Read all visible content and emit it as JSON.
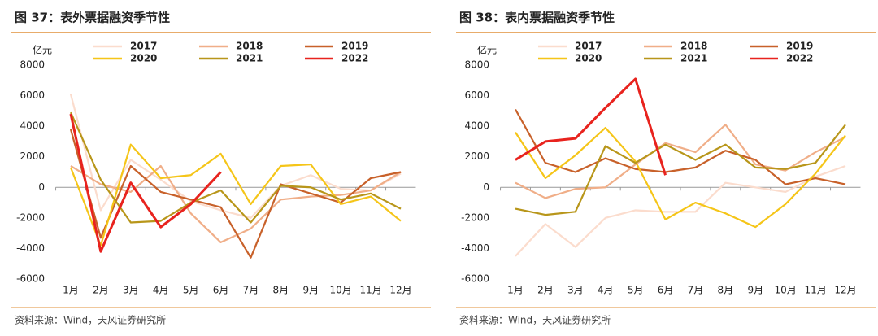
{
  "chart_data": [
    {
      "type": "line",
      "title": "图 37：表外票据融资季节性",
      "y_label": "亿元",
      "source": "资料来源：Wind，天风证券研究所",
      "categories": [
        "1月",
        "2月",
        "3月",
        "4月",
        "5月",
        "6月",
        "7月",
        "8月",
        "9月",
        "10月",
        "11月",
        "12月"
      ],
      "ylim": [
        -6000,
        8000
      ],
      "yticks": [
        -6000,
        -4000,
        -2000,
        0,
        2000,
        4000,
        6000,
        8000
      ],
      "series": [
        {
          "name": "2017",
          "color": "#fbdccd",
          "values": [
            6100,
            -1500,
            1800,
            500,
            -900,
            -1500,
            -2000,
            100,
            800,
            -100,
            -200,
            900
          ]
        },
        {
          "name": "2018",
          "color": "#f0ae88",
          "values": [
            1400,
            200,
            -300,
            1400,
            -1700,
            -3600,
            -2700,
            -800,
            -600,
            -500,
            -200,
            1000
          ]
        },
        {
          "name": "2019",
          "color": "#c8612a",
          "values": [
            3800,
            -3300,
            1400,
            -300,
            -800,
            -1300,
            -4600,
            200,
            -400,
            -1000,
            600,
            1000
          ]
        },
        {
          "name": "2020",
          "color": "#f5c518",
          "values": [
            1300,
            -3800,
            2800,
            600,
            800,
            2200,
            -1100,
            1400,
            1500,
            -1100,
            -600,
            -2200
          ]
        },
        {
          "name": "2021",
          "color": "#b8961a",
          "values": [
            4900,
            500,
            -2300,
            -2200,
            -1000,
            -200,
            -2300,
            100,
            0,
            -800,
            -400,
            -1400
          ]
        },
        {
          "name": "2022",
          "color": "#e8231e",
          "values": [
            4800,
            -4200,
            300,
            -2600,
            -1100,
            1000,
            null,
            null,
            null,
            null,
            null,
            null
          ]
        }
      ]
    },
    {
      "type": "line",
      "title": "图 38：表内票据融资季节性",
      "y_label": "亿元",
      "source": "资料来源：Wind，天风证券研究所",
      "categories": [
        "1月",
        "2月",
        "3月",
        "4月",
        "5月",
        "6月",
        "7月",
        "8月",
        "9月",
        "10月",
        "11月",
        "12月"
      ],
      "ylim": [
        -6000,
        8000
      ],
      "yticks": [
        -6000,
        -4000,
        -2000,
        0,
        2000,
        4000,
        6000,
        8000
      ],
      "series": [
        {
          "name": "2017",
          "color": "#fbdccd",
          "values": [
            -4500,
            -2400,
            -3900,
            -2000,
            -1500,
            -1600,
            -1600,
            300,
            0,
            -300,
            700,
            1400
          ]
        },
        {
          "name": "2018",
          "color": "#f0ae88",
          "values": [
            300,
            -700,
            -100,
            0,
            1500,
            2900,
            2300,
            4100,
            1500,
            1100,
            2300,
            3300
          ]
        },
        {
          "name": "2019",
          "color": "#c8612a",
          "values": [
            5100,
            1600,
            1000,
            1900,
            1200,
            1000,
            1300,
            2400,
            1800,
            200,
            600,
            200
          ]
        },
        {
          "name": "2020",
          "color": "#f5c518",
          "values": [
            3600,
            600,
            2100,
            3900,
            1700,
            -2100,
            -1000,
            -1700,
            -2600,
            -1100,
            900,
            3400
          ]
        },
        {
          "name": "2021",
          "color": "#b8961a",
          "values": [
            -1400,
            -1800,
            -1600,
            2700,
            1600,
            2800,
            1800,
            2800,
            1300,
            1200,
            1600,
            4100
          ]
        },
        {
          "name": "2022",
          "color": "#e8231e",
          "values": [
            1800,
            3000,
            3200,
            5200,
            7100,
            800,
            null,
            null,
            null,
            null,
            null,
            null
          ]
        }
      ]
    }
  ]
}
